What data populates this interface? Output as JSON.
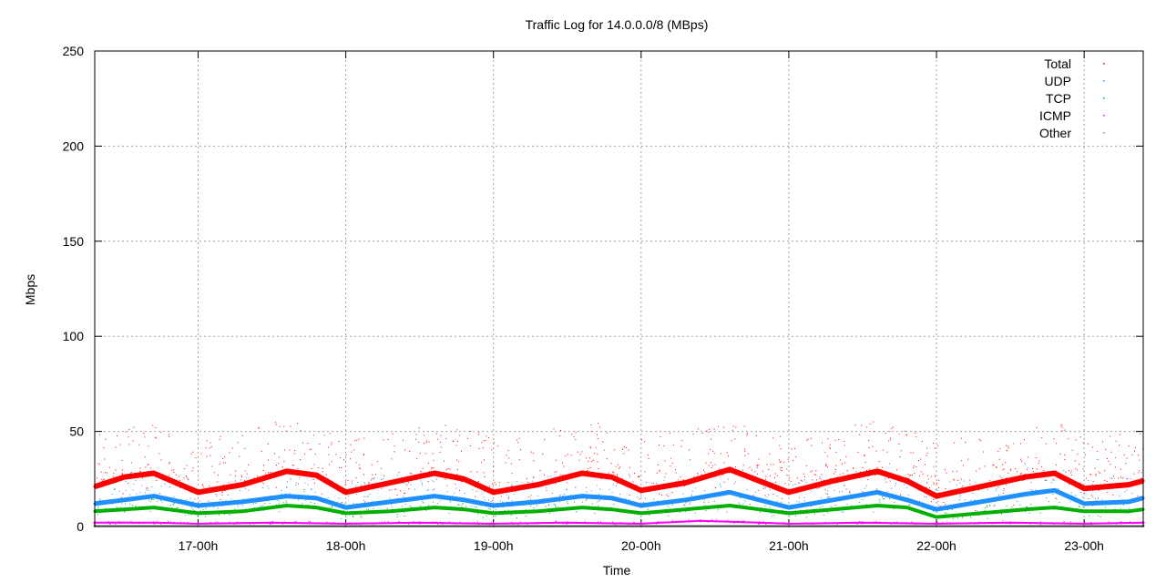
{
  "chart_data": {
    "type": "scatter",
    "title": "Traffic Log for 14.0.0.0/8 (MBps)",
    "xlabel": "Time",
    "ylabel": "Mbps",
    "x_unit": "hours",
    "xlim": [
      16.3,
      23.4
    ],
    "ylim": [
      0,
      250
    ],
    "y_ticks": [
      0,
      50,
      100,
      150,
      200,
      250
    ],
    "x_ticks": [
      {
        "value": 17,
        "label": "17-00h"
      },
      {
        "value": 18,
        "label": "18-00h"
      },
      {
        "value": 19,
        "label": "19-00h"
      },
      {
        "value": 20,
        "label": "20-00h"
      },
      {
        "value": 21,
        "label": "21-00h"
      },
      {
        "value": 22,
        "label": "22-00h"
      },
      {
        "value": 23,
        "label": "23-00h"
      }
    ],
    "grid": true,
    "legend_position": "top-right",
    "series": [
      {
        "name": "Total",
        "color": "#ff0000",
        "x": [
          16.3,
          16.5,
          16.7,
          17.0,
          17.3,
          17.6,
          17.8,
          18.0,
          18.3,
          18.6,
          18.8,
          19.0,
          19.3,
          19.6,
          19.8,
          20.0,
          20.3,
          20.6,
          20.8,
          21.0,
          21.3,
          21.6,
          21.8,
          22.0,
          22.3,
          22.6,
          22.8,
          23.0,
          23.3,
          23.4
        ],
        "y": [
          21,
          26,
          28,
          18,
          22,
          29,
          27,
          18,
          23,
          28,
          25,
          18,
          22,
          28,
          26,
          19,
          23,
          30,
          24,
          18,
          24,
          29,
          24,
          16,
          21,
          26,
          28,
          20,
          22,
          24
        ]
      },
      {
        "name": "UDP",
        "color": "#1e90ff",
        "x": [
          16.3,
          16.5,
          16.7,
          17.0,
          17.3,
          17.6,
          17.8,
          18.0,
          18.3,
          18.6,
          18.8,
          19.0,
          19.3,
          19.6,
          19.8,
          20.0,
          20.3,
          20.6,
          20.8,
          21.0,
          21.3,
          21.6,
          21.8,
          22.0,
          22.3,
          22.6,
          22.8,
          23.0,
          23.3,
          23.4
        ],
        "y": [
          12,
          14,
          16,
          11,
          13,
          16,
          15,
          10,
          13,
          16,
          14,
          11,
          13,
          16,
          15,
          11,
          14,
          18,
          14,
          10,
          14,
          18,
          14,
          9,
          13,
          17,
          19,
          12,
          13,
          15
        ]
      },
      {
        "name": "TCP",
        "color": "#00b000",
        "x": [
          16.3,
          16.5,
          16.7,
          17.0,
          17.3,
          17.6,
          17.8,
          18.0,
          18.3,
          18.6,
          18.8,
          19.0,
          19.3,
          19.6,
          19.8,
          20.0,
          20.3,
          20.6,
          20.8,
          21.0,
          21.3,
          21.6,
          21.8,
          22.0,
          22.3,
          22.6,
          22.8,
          23.0,
          23.3,
          23.4
        ],
        "y": [
          8,
          9,
          10,
          7,
          8,
          11,
          10,
          7,
          8,
          10,
          9,
          7,
          8,
          10,
          9,
          7,
          9,
          11,
          9,
          7,
          9,
          11,
          10,
          5,
          7,
          9,
          10,
          8,
          8,
          9
        ]
      },
      {
        "name": "ICMP",
        "color": "#ff00ff",
        "x": [
          16.3,
          16.7,
          17.0,
          17.5,
          18.0,
          18.5,
          19.0,
          19.5,
          20.0,
          20.4,
          20.8,
          21.0,
          21.5,
          22.0,
          22.5,
          23.0,
          23.4
        ],
        "y": [
          2,
          2,
          1.5,
          2,
          1.5,
          2,
          1.5,
          2,
          1.5,
          3,
          2,
          1.5,
          2,
          1.5,
          2,
          1.5,
          2
        ]
      },
      {
        "name": "Other",
        "color": "#808080",
        "x": [
          16.3,
          17.0,
          18.0,
          19.0,
          20.0,
          21.0,
          22.0,
          23.0,
          23.4
        ],
        "y": [
          0.3,
          0.3,
          0.3,
          0.3,
          0.3,
          0.3,
          0.3,
          0.3,
          0.3
        ]
      }
    ]
  }
}
